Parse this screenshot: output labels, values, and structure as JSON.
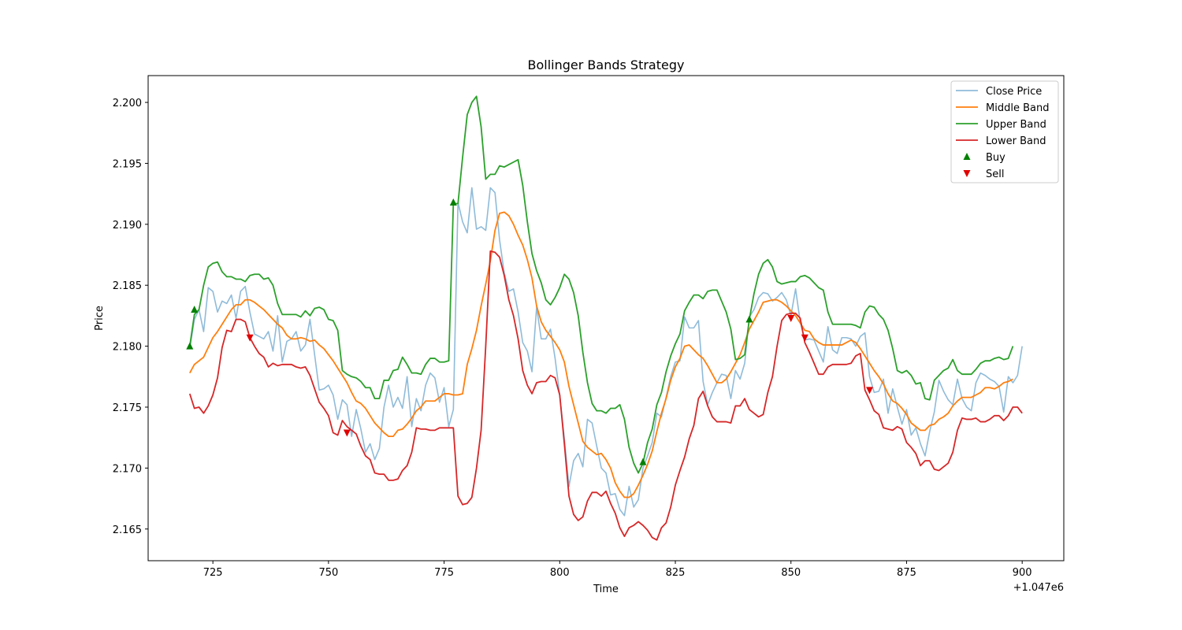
{
  "chart_data": {
    "type": "line",
    "title": "Bollinger Bands Strategy",
    "xlabel": "Time",
    "ylabel": "Price",
    "x_offset_label": "+1.047e6",
    "xlim": [
      1047711,
      1047909
    ],
    "ylim": [
      2.1624,
      2.2022
    ],
    "x_ticks": [
      725,
      750,
      775,
      800,
      825,
      850,
      875,
      900
    ],
    "y_ticks": [
      "2.165",
      "2.170",
      "2.175",
      "2.180",
      "2.185",
      "2.190",
      "2.195",
      "2.200"
    ],
    "grid": false,
    "legend_position": "top-right",
    "x_start": 1047720,
    "series": [
      {
        "name": "Close Price",
        "color": "#8fbbd9",
        "values": [
          2.1798,
          2.1822,
          2.183,
          2.1812,
          2.1848,
          2.1845,
          2.1828,
          2.1837,
          2.1835,
          2.1842,
          2.1823,
          2.1845,
          2.1849,
          2.1828,
          2.181,
          2.1808,
          2.1806,
          2.1812,
          2.1796,
          2.1825,
          2.1787,
          2.1804,
          2.1806,
          2.1812,
          2.1796,
          2.1801,
          2.1822,
          2.1793,
          2.1764,
          2.1765,
          2.1768,
          2.176,
          2.174,
          2.1756,
          2.1752,
          2.1726,
          2.1748,
          2.1732,
          2.1713,
          2.172,
          2.1707,
          2.1716,
          2.175,
          2.1768,
          2.175,
          2.1758,
          2.1749,
          2.1775,
          2.1734,
          2.1757,
          2.1747,
          2.1768,
          2.1778,
          2.1774,
          2.1754,
          2.1766,
          2.1734,
          2.1748,
          2.1918,
          2.1902,
          2.1893,
          2.193,
          2.1896,
          2.1898,
          2.1895,
          2.193,
          2.1926,
          2.1887,
          2.186,
          2.1845,
          2.1847,
          2.1828,
          2.1803,
          2.1796,
          2.1779,
          2.1832,
          2.1806,
          2.1806,
          2.1814,
          2.179,
          2.176,
          2.1724,
          2.1685,
          2.1706,
          2.1712,
          2.1701,
          2.174,
          2.1737,
          2.1718,
          2.17,
          2.1696,
          2.1678,
          2.1679,
          2.1666,
          2.1661,
          2.1685,
          2.1668,
          2.1674,
          2.17,
          2.171,
          2.1721,
          2.1745,
          2.1742,
          2.1758,
          2.1775,
          2.1787,
          2.1788,
          2.1824,
          2.1815,
          2.1815,
          2.1821,
          2.1771,
          2.1752,
          2.1762,
          2.177,
          2.1777,
          2.1776,
          2.1757,
          2.178,
          2.1773,
          2.1786,
          2.1824,
          2.183,
          2.184,
          2.1844,
          2.1843,
          2.1837,
          2.184,
          2.1844,
          2.1838,
          2.1825,
          2.1847,
          2.182,
          2.1805,
          2.1806,
          2.1805,
          2.1796,
          2.1787,
          2.1816,
          2.1797,
          2.1794,
          2.1807,
          2.1807,
          2.1806,
          2.18,
          2.1808,
          2.1811,
          2.1775,
          2.1762,
          2.1763,
          2.1773,
          2.1745,
          2.1765,
          2.175,
          2.1736,
          2.1748,
          2.1727,
          2.1733,
          2.172,
          2.171,
          2.173,
          2.1746,
          2.1772,
          2.1763,
          2.1756,
          2.1752,
          2.1773,
          2.1757,
          2.175,
          2.1747,
          2.177,
          2.1778,
          2.1776,
          2.1773,
          2.1771,
          2.1767,
          2.1746,
          2.1775,
          2.177,
          2.1776,
          2.18
        ]
      },
      {
        "name": "Middle Band",
        "color": "#ff7f0e",
        "values": [
          2.1778,
          2.1785,
          2.1788,
          2.1791,
          2.1799,
          2.1807,
          2.1812,
          2.1818,
          2.1824,
          2.183,
          2.1834,
          2.1834,
          2.1838,
          2.1838,
          2.1836,
          2.1833,
          2.183,
          2.1826,
          2.1822,
          2.1818,
          2.1815,
          2.1809,
          2.1806,
          2.1806,
          2.1807,
          2.1806,
          2.1804,
          2.1805,
          2.1801,
          2.1798,
          2.1793,
          2.1788,
          2.1782,
          2.1776,
          2.177,
          2.1762,
          2.1755,
          2.1753,
          2.1749,
          2.1743,
          2.1737,
          2.1733,
          2.1729,
          2.1726,
          2.1726,
          2.1731,
          2.1732,
          2.1736,
          2.1741,
          2.1747,
          2.175,
          2.1755,
          2.1755,
          2.1755,
          2.1758,
          2.1761,
          2.1761,
          2.176,
          2.176,
          2.1761,
          2.1785,
          2.1798,
          2.1813,
          2.1833,
          2.1851,
          2.187,
          2.1895,
          2.1909,
          2.191,
          2.1907,
          2.19,
          2.1891,
          2.1883,
          2.1871,
          2.1856,
          2.1833,
          2.182,
          2.1813,
          2.1808,
          2.1803,
          2.1797,
          2.1787,
          2.1767,
          2.1752,
          2.1737,
          2.1722,
          2.1717,
          2.1714,
          2.1711,
          2.1712,
          2.1707,
          2.17,
          2.1688,
          2.1681,
          2.1676,
          2.1676,
          2.1679,
          2.1686,
          2.1694,
          2.1703,
          2.1714,
          2.173,
          2.1745,
          2.1757,
          2.1772,
          2.1783,
          2.179,
          2.18,
          2.1801,
          2.1797,
          2.1793,
          2.179,
          2.1784,
          2.1777,
          2.177,
          2.177,
          2.1773,
          2.1779,
          2.1786,
          2.1793,
          2.1803,
          2.1814,
          2.1821,
          2.1828,
          2.1836,
          2.1837,
          2.1838,
          2.1838,
          2.1836,
          2.1833,
          2.1829,
          2.1825,
          2.1819,
          2.1813,
          2.1812,
          2.1806,
          2.1803,
          2.1801,
          2.1801,
          2.1801,
          2.1801,
          2.1801,
          2.1803,
          2.1805,
          2.1803,
          2.1798,
          2.1792,
          2.1786,
          2.178,
          2.1775,
          2.1769,
          2.1761,
          2.1755,
          2.1753,
          2.1749,
          2.1744,
          2.1737,
          2.1734,
          2.1731,
          2.1731,
          2.1735,
          2.1736,
          2.174,
          2.1742,
          2.1745,
          2.1751,
          2.1755,
          2.1758,
          2.1758,
          2.1758,
          2.176,
          2.1762,
          2.1766,
          2.1766,
          2.1765,
          2.1767,
          2.177,
          2.1771,
          2.1773
        ]
      },
      {
        "name": "Upper Band",
        "color": "#2ca02c",
        "values": [
          2.18,
          2.1826,
          2.183,
          2.185,
          2.1865,
          2.1868,
          2.1869,
          2.1861,
          2.1857,
          2.1857,
          2.1855,
          2.1855,
          2.1853,
          2.1858,
          2.1859,
          2.1859,
          2.1855,
          2.1856,
          2.185,
          2.1835,
          2.1826,
          2.1826,
          2.1826,
          2.1826,
          2.1824,
          2.1829,
          2.1825,
          2.1831,
          2.1832,
          2.183,
          2.1822,
          2.1821,
          2.1813,
          2.178,
          2.1777,
          2.1775,
          2.1774,
          2.1771,
          2.1766,
          2.1766,
          2.1757,
          2.1757,
          2.1772,
          2.1772,
          2.178,
          2.1781,
          2.1791,
          2.1785,
          2.1778,
          2.1778,
          2.1777,
          2.1785,
          2.179,
          2.179,
          2.1787,
          2.1787,
          2.1788,
          2.1917,
          2.1917,
          2.1955,
          2.199,
          2.2,
          2.2005,
          2.198,
          2.1937,
          2.1941,
          2.1941,
          2.1948,
          2.1947,
          2.1949,
          2.1951,
          2.1953,
          2.1932,
          2.1902,
          2.1876,
          2.1862,
          2.1852,
          2.1838,
          2.1834,
          2.184,
          2.1848,
          2.1859,
          2.1855,
          2.1844,
          2.1825,
          2.1795,
          2.177,
          2.1753,
          2.1747,
          2.1747,
          2.1745,
          2.1749,
          2.1749,
          2.1752,
          2.174,
          2.1717,
          2.1704,
          2.1696,
          2.1704,
          2.1721,
          2.1732,
          2.1752,
          2.1762,
          2.1779,
          2.1792,
          2.1802,
          2.181,
          2.1829,
          2.1836,
          2.1842,
          2.1842,
          2.1839,
          2.1845,
          2.1846,
          2.1846,
          2.1837,
          2.1828,
          2.1814,
          2.1789,
          2.179,
          2.1793,
          2.1822,
          2.1843,
          2.1859,
          2.1868,
          2.1871,
          2.1865,
          2.1853,
          2.1851,
          2.1852,
          2.1853,
          2.1853,
          2.1857,
          2.1858,
          2.1856,
          2.1852,
          2.1848,
          2.1846,
          2.1828,
          2.1818,
          2.1818,
          2.1818,
          2.1818,
          2.1818,
          2.1817,
          2.1815,
          2.1828,
          2.1833,
          2.1832,
          2.1826,
          2.1822,
          2.1813,
          2.1798,
          2.178,
          2.1778,
          2.178,
          2.1776,
          2.1769,
          2.177,
          2.1757,
          2.1756,
          2.1772,
          2.1776,
          2.178,
          2.1782,
          2.1789,
          2.178,
          2.1777,
          2.1777,
          2.1777,
          2.1781,
          2.1786,
          2.1788,
          2.1788,
          2.179,
          2.1791,
          2.1789,
          2.179,
          2.18
        ]
      },
      {
        "name": "Lower Band",
        "color": "#d62728",
        "values": [
          2.1761,
          2.1749,
          2.175,
          2.1745,
          2.1751,
          2.176,
          2.1774,
          2.1799,
          2.1813,
          2.1812,
          2.1822,
          2.1822,
          2.182,
          2.1807,
          2.18,
          2.1794,
          2.1791,
          2.1783,
          2.1786,
          2.1784,
          2.1785,
          2.1785,
          2.1785,
          2.1783,
          2.1782,
          2.1783,
          2.1776,
          2.1765,
          2.1754,
          2.1749,
          2.1743,
          2.1729,
          2.1727,
          2.1739,
          2.1734,
          2.1731,
          2.1728,
          2.1718,
          2.171,
          2.1707,
          2.1696,
          2.1695,
          2.1695,
          2.169,
          2.169,
          2.1691,
          2.1698,
          2.1702,
          2.1713,
          2.1733,
          2.1732,
          2.1732,
          2.1731,
          2.1731,
          2.1733,
          2.1733,
          2.1733,
          2.1733,
          2.1677,
          2.167,
          2.1671,
          2.1676,
          2.17,
          2.1731,
          2.18,
          2.1878,
          2.1877,
          2.1873,
          2.1858,
          2.1838,
          2.1825,
          2.1806,
          2.178,
          2.1768,
          2.1761,
          2.177,
          2.1771,
          2.1771,
          2.1776,
          2.1774,
          2.176,
          2.172,
          2.1677,
          2.1662,
          2.1657,
          2.166,
          2.1673,
          2.168,
          2.168,
          2.1677,
          2.1681,
          2.1671,
          2.1663,
          2.1651,
          2.1644,
          2.1651,
          2.1653,
          2.1656,
          2.1653,
          2.1649,
          2.1643,
          2.1641,
          2.1651,
          2.1655,
          2.1668,
          2.1686,
          2.1698,
          2.1709,
          2.1724,
          2.1735,
          2.1757,
          2.1763,
          2.1751,
          2.1742,
          2.1738,
          2.1738,
          2.1738,
          2.1737,
          2.1751,
          2.1751,
          2.1757,
          2.1748,
          2.1745,
          2.1742,
          2.1744,
          2.1762,
          2.1775,
          2.18,
          2.1821,
          2.1826,
          2.1827,
          2.1827,
          2.1823,
          2.1803,
          2.1795,
          2.1786,
          2.1777,
          2.1777,
          2.1783,
          2.1785,
          2.1785,
          2.1785,
          2.1785,
          2.1786,
          2.1792,
          2.1794,
          2.1764,
          2.1756,
          2.1747,
          2.1744,
          2.1733,
          2.1732,
          2.1731,
          2.1734,
          2.1732,
          2.1721,
          2.1717,
          2.1712,
          2.1702,
          2.1706,
          2.1706,
          2.1699,
          2.1698,
          2.1701,
          2.1704,
          2.1713,
          2.1731,
          2.1741,
          2.174,
          2.174,
          2.1741,
          2.1738,
          2.1738,
          2.174,
          2.1743,
          2.1743,
          2.1739,
          2.1743,
          2.175,
          2.175,
          2.1745
        ]
      }
    ],
    "buy_signals": {
      "name": "Buy",
      "color": "#008000",
      "x": [
        1047720,
        1047721,
        1047777,
        1047818,
        1047841
      ],
      "y": [
        2.18,
        2.183,
        2.1918,
        2.1705,
        2.1822
      ]
    },
    "sell_signals": {
      "name": "Sell",
      "color": "#e00000",
      "x": [
        1047733,
        1047754,
        1047850,
        1047853,
        1047867
      ],
      "y": [
        2.1807,
        2.1729,
        2.1823,
        2.1807,
        2.1764
      ]
    }
  }
}
